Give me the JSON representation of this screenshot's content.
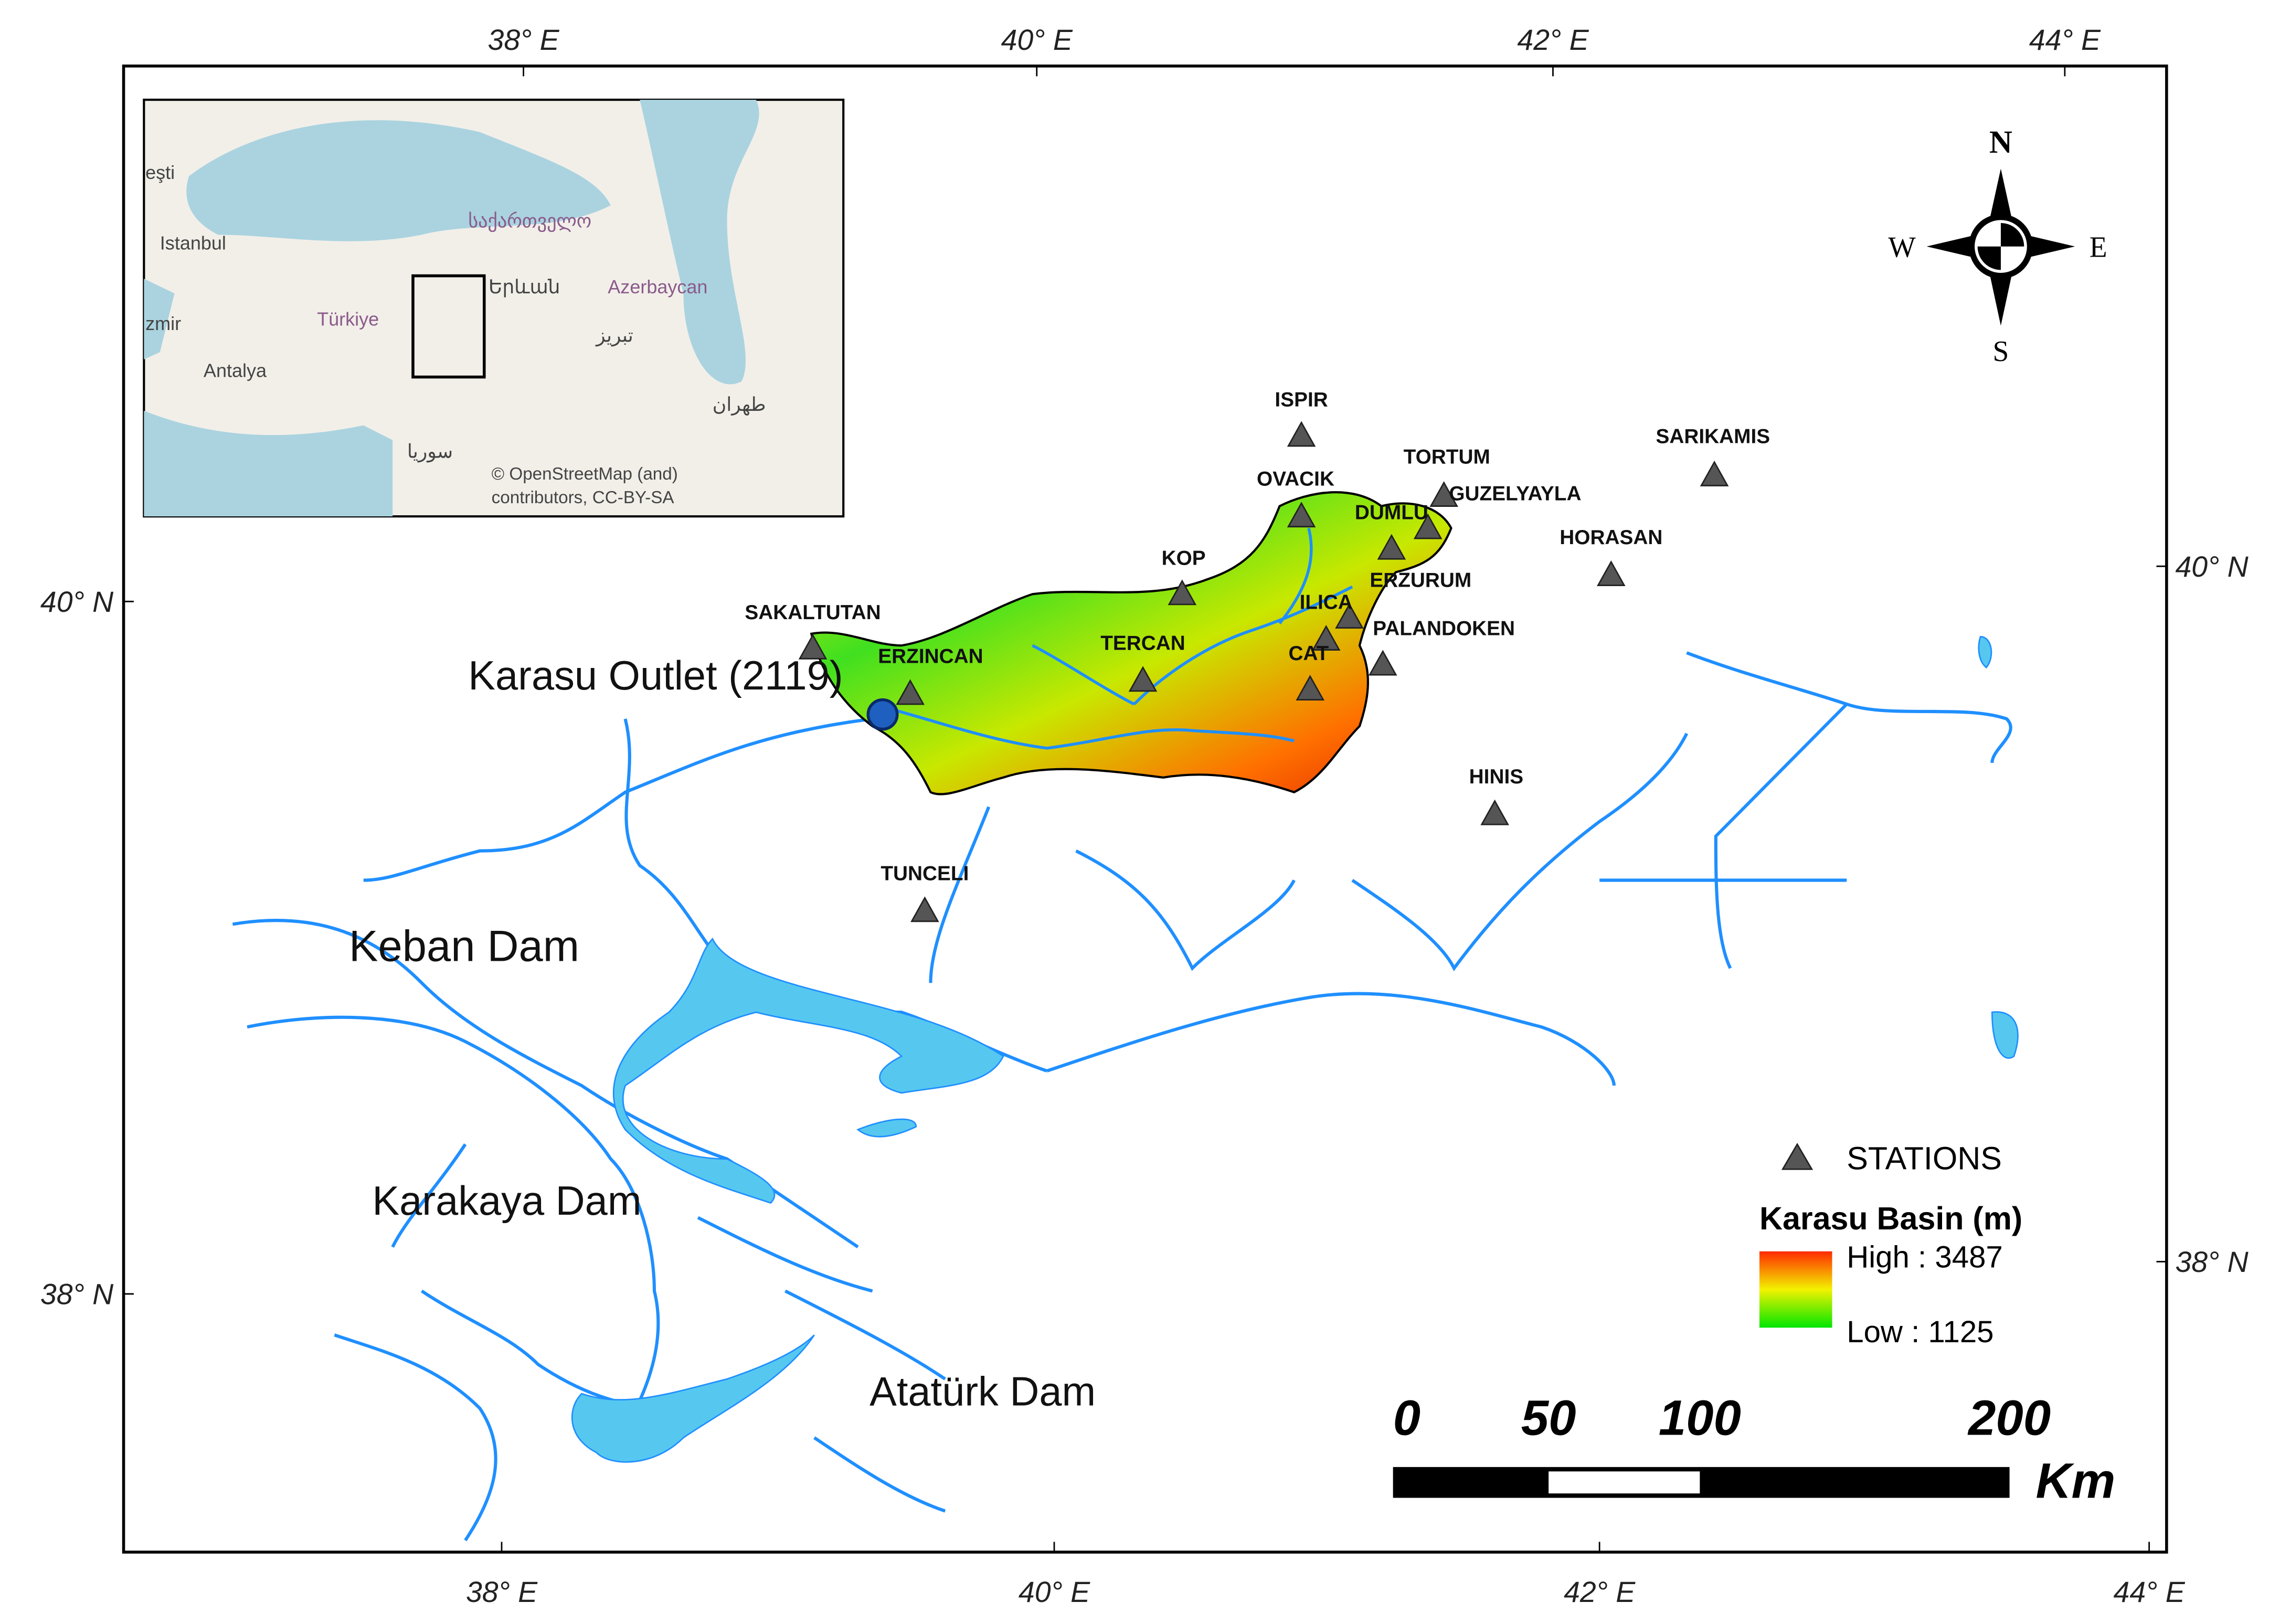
{
  "map": {
    "top_axis": [
      "38° E",
      "40° E",
      "42° E",
      "44° E"
    ],
    "bottom_axis": [
      "38° E",
      "40° E",
      "42° E",
      "44° E"
    ],
    "left_axis": [
      "40° N",
      "38° N"
    ],
    "right_axis": [
      "40° N",
      "38° N"
    ],
    "compass": {
      "north": "N",
      "south": "S",
      "east": "E",
      "west": "W"
    },
    "stations": [
      "ISPIR",
      "TORTUM",
      "SARIKAMIS",
      "OVACIK",
      "GUZELYAYLA",
      "DUMLU",
      "HORASAN",
      "KOP",
      "ERZURUM",
      "ILICA",
      "PALANDOKEN",
      "SAKALTUTAN",
      "ERZINCAN",
      "TERCAN",
      "CAT",
      "HINIS",
      "TUNCELI"
    ],
    "labels": [
      "Karasu Outlet (2119)",
      "Keban Dam",
      "Karakaya Dam",
      "Atatürk Dam"
    ],
    "legend": {
      "stations": "STATIONS",
      "title": "Karasu Basin (m)",
      "high": "High : 3487",
      "low": "Low : 1125"
    },
    "scale_bar": {
      "ticks": [
        0,
        50,
        100,
        200
      ],
      "unit": "Km"
    },
    "inset": {
      "labels": [
        "eşti",
        "Istanbul",
        "საქართველო",
        "Երևան",
        "Azerbaycan",
        "Türkiye",
        "zmir",
        "Antalya",
        "تبریز",
        "طهران",
        "سوريا"
      ],
      "attribution_1": "© OpenStreetMap (and)",
      "attribution_2": "contributors, CC-BY-SA"
    }
  }
}
